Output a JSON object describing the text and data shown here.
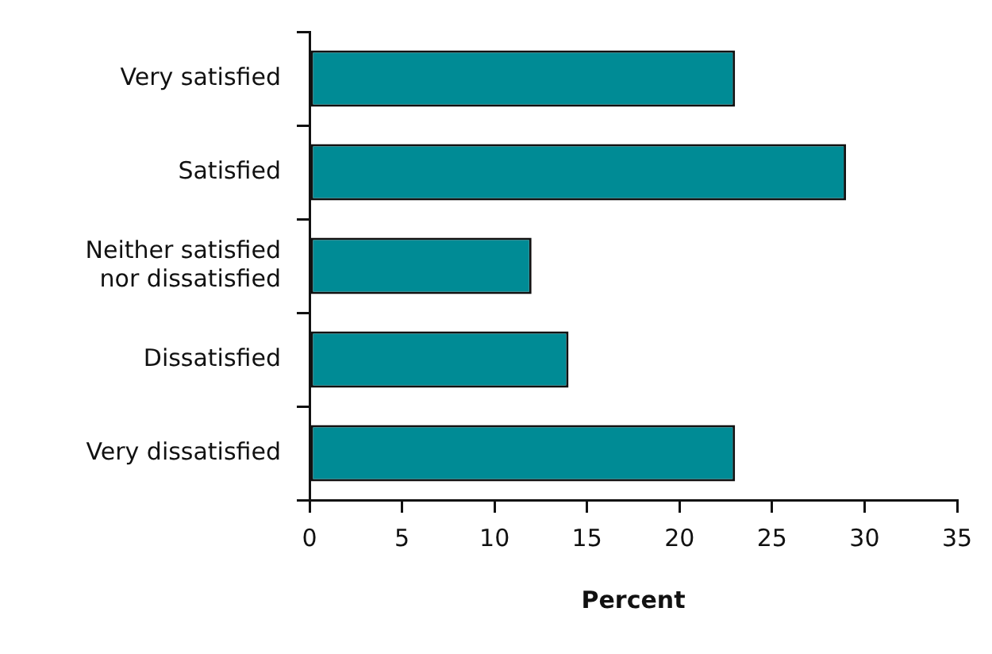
{
  "chart_data": {
    "type": "bar",
    "orientation": "horizontal",
    "xlabel": "Percent",
    "categories": [
      "Very satisfied",
      "Satisfied",
      "Neither satisfied nor dissatisfied",
      "Dissatisfied",
      "Very dissatisfied"
    ],
    "values": [
      23,
      29,
      12,
      14,
      23
    ],
    "color": "#008b95",
    "xlim": [
      0,
      35
    ],
    "xticks": [
      0,
      5,
      10,
      15,
      20,
      25,
      30,
      35
    ],
    "grid": false,
    "legend": false
  }
}
